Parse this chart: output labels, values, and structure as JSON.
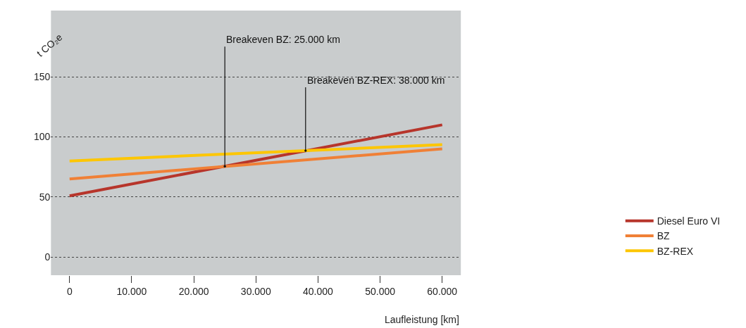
{
  "chart_data": {
    "type": "line",
    "xlabel": "Laufleistung [km]",
    "ylabel": "t CO₂e",
    "x": [
      0,
      60000
    ],
    "series": [
      {
        "name": "Diesel Euro VI",
        "color": "#b7352b",
        "values": [
          51,
          110
        ]
      },
      {
        "name": "BZ",
        "color": "#f08036",
        "values": [
          65,
          90
        ]
      },
      {
        "name": "BZ-REX",
        "color": "#fdc600",
        "values": [
          80,
          93.5
        ]
      }
    ],
    "xlim": [
      -3000,
      63000
    ],
    "ylim": [
      -15,
      205
    ],
    "xticks": [
      0,
      {
        "value": 10000,
        "label": "10.000"
      },
      {
        "value": 20000,
        "label": "20.000"
      },
      {
        "value": 30000,
        "label": "30.000"
      },
      {
        "value": 40000,
        "label": "40.000"
      },
      {
        "value": 50000,
        "label": "50.000"
      },
      {
        "value": 60000,
        "label": "60.000"
      }
    ],
    "yticks": [
      0,
      50,
      100,
      150
    ],
    "grid": "y",
    "legend": "right",
    "marker": "none",
    "line_style": "solid",
    "annotations": [
      {
        "text": "Breakeven BZ: 25.000 km",
        "x": 25000,
        "y": 75.5
      },
      {
        "text": "Breakeven BZ-REX: 38.000 km",
        "x": 38000,
        "y": 88.5
      }
    ]
  }
}
